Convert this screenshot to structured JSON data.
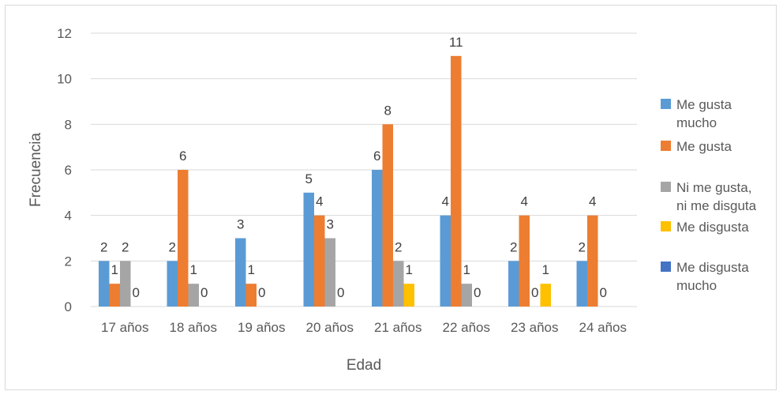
{
  "chart_data": {
    "type": "bar",
    "xlabel": "Edad",
    "ylabel": "Frecuencia",
    "ylim": [
      0,
      12
    ],
    "yticks": [
      0,
      2,
      4,
      6,
      8,
      10,
      12
    ],
    "grid": true,
    "legend_position": "right",
    "categories": [
      "17 años",
      "18 años",
      "19 años",
      "20 años",
      "21 años",
      "22 años",
      "23 años",
      "24 años"
    ],
    "series": [
      {
        "name": "Me gusta mucho",
        "color": "#5B9BD5",
        "values": [
          2,
          2,
          3,
          5,
          6,
          4,
          2,
          2
        ],
        "labels": [
          "2",
          "2",
          "3",
          "5",
          "6",
          "4",
          "2",
          "2"
        ]
      },
      {
        "name": "Me gusta",
        "color": "#ED7D31",
        "values": [
          1,
          6,
          1,
          4,
          8,
          11,
          4,
          4
        ],
        "labels": [
          "1",
          "6",
          "1",
          "4",
          "8",
          "11",
          "4",
          "4"
        ]
      },
      {
        "name": "Ni me gusta, ni me disguta",
        "color": "#A5A5A5",
        "values": [
          2,
          1,
          0,
          3,
          2,
          1,
          0,
          0
        ],
        "labels": [
          "2",
          "1",
          "0",
          "3",
          "2",
          "1",
          "0",
          "0"
        ]
      },
      {
        "name": "Me disgusta",
        "color": "#FFC000",
        "values": [
          0,
          0,
          0,
          0,
          1,
          0,
          1,
          0
        ],
        "labels": [
          "0",
          "0",
          "",
          "0",
          "1",
          "0",
          "1",
          ""
        ]
      },
      {
        "name": "Me disgusta mucho",
        "color": "#4472C4",
        "values": [
          0,
          0,
          0,
          0,
          0,
          0,
          0,
          0
        ],
        "labels": [
          "",
          "",
          "",
          "",
          "",
          "",
          "",
          ""
        ]
      }
    ],
    "legend": [
      {
        "lines": [
          "Me gusta",
          "mucho"
        ]
      },
      {
        "lines": [
          "Me gusta"
        ]
      },
      {
        "lines": [
          "Ni me gusta,",
          "ni me disguta"
        ]
      },
      {
        "lines": [
          "Me disgusta"
        ]
      },
      {
        "lines": [
          "Me disgusta",
          "mucho"
        ]
      }
    ]
  }
}
